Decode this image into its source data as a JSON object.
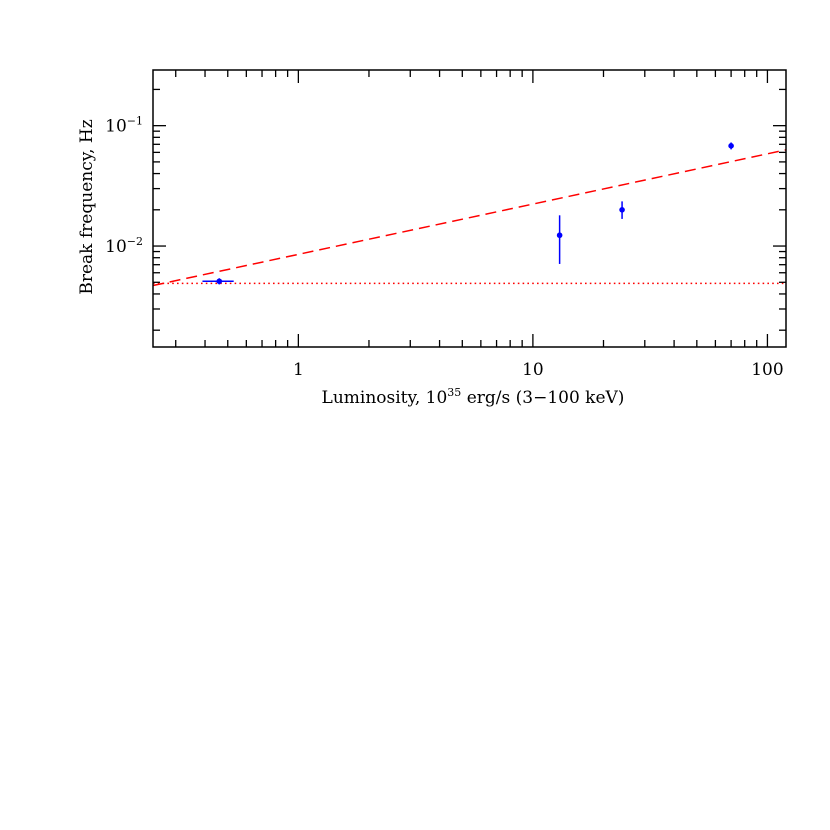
{
  "chart_data": {
    "type": "scatter",
    "xlabel": "Luminosity, 10",
    "xlabel_exponent": "35",
    "xlabel_suffix": " erg/s (3−100 keV)",
    "ylabel": "Break frequency, Hz",
    "x_scale": "log",
    "y_scale": "log",
    "xlim": [
      0.24,
      120
    ],
    "ylim": [
      0.00145,
      0.29
    ],
    "x_ticks": [
      {
        "value": 1,
        "label": "1"
      },
      {
        "value": 10,
        "label": "10"
      },
      {
        "value": 100,
        "label": "100"
      }
    ],
    "y_ticks": [
      {
        "value": 0.1,
        "base": "10",
        "exponent": "−1"
      },
      {
        "value": 0.01,
        "base": "10",
        "exponent": "−2"
      }
    ],
    "grid": false,
    "legend": "none",
    "points": [
      {
        "x": 0.46,
        "y": 0.0051,
        "x_err": [
          0.39,
          0.53
        ],
        "y_err": [
          0.0048,
          0.0054
        ]
      },
      {
        "x": 13.0,
        "y": 0.0123,
        "x_err": [
          13.0,
          13.0
        ],
        "y_err": [
          0.0071,
          0.018
        ]
      },
      {
        "x": 24.0,
        "y": 0.02,
        "x_err": [
          24.0,
          24.0
        ],
        "y_err": [
          0.0168,
          0.0235
        ]
      },
      {
        "x": 70.0,
        "y": 0.068,
        "x_err": [
          70.0,
          70.0
        ],
        "y_err": [
          0.0635,
          0.0725
        ]
      }
    ],
    "lines": [
      {
        "style": "dashed",
        "color": "#ff0000",
        "from": [
          0.24,
          0.0047
        ],
        "to": [
          120,
          0.063
        ]
      },
      {
        "style": "dotted",
        "color": "#ff0000",
        "from": [
          0.24,
          0.0049
        ],
        "to": [
          120,
          0.0049
        ]
      }
    ],
    "point_color": "#0000ff"
  }
}
